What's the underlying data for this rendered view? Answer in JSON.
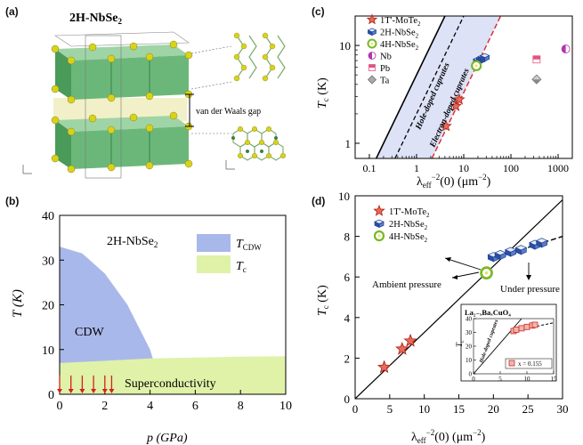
{
  "panel_a": {
    "label": "(a)",
    "title": "2H-NbSe",
    "title_sub": "2",
    "gap_label": "van der Waals gap"
  },
  "panel_b": {
    "label": "(b)",
    "title": "2H-NbSe",
    "title_sub": "2",
    "region_cdw": "CDW",
    "region_sc": "Superconductivity",
    "legend": [
      {
        "text": "T",
        "sub": "CDW",
        "color": "#a9b8ea"
      },
      {
        "text": "T",
        "sub": "c",
        "color": "#dff2a8"
      }
    ],
    "xlabel": "p (GPa)",
    "ylabel": "T (K)",
    "xticks": [
      "0",
      "2",
      "4",
      "6",
      "8",
      "10"
    ],
    "yticks": [
      "0",
      "10",
      "20",
      "30",
      "40"
    ]
  },
  "panel_c": {
    "label": "(c)",
    "xlabel_main": "λ",
    "xlabel_sub": "eff",
    "xlabel_sup": "−2",
    "xlabel_rest": "(0) (μm",
    "xlabel_unit_sup": "−2",
    "xlabel_close": ")",
    "ylabel": "T",
    "ylabel_sub": "c",
    "ylabel_rest": " (K)",
    "xticks": [
      "0.1",
      "1",
      "10",
      "100",
      "1000"
    ],
    "yticks": [
      "1",
      "10"
    ],
    "band_label_hole": "Hole-doped cuprates",
    "band_label_electron": "Electron-doped cuprates",
    "legend": [
      {
        "text": "1T'-MoTe",
        "sub": "2",
        "color": "#cc2b1d"
      },
      {
        "text": "2H-NbSe",
        "sub": "2",
        "color": "#2a4fa8"
      },
      {
        "text": "4H-NbSe",
        "sub": "2",
        "color": "#7ab828"
      },
      {
        "text": "Nb",
        "sub": "",
        "color": "#b035b0"
      },
      {
        "text": "Pb",
        "sub": "",
        "color": "#e3547f"
      },
      {
        "text": "Ta",
        "sub": "",
        "color": "#8a8a8a"
      }
    ]
  },
  "panel_d": {
    "label": "(d)",
    "xlabel_main": "λ",
    "xlabel_sub": "eff",
    "xlabel_sup": "−2",
    "xlabel_rest": "(0) (μm",
    "xlabel_unit_sup": "−2",
    "xlabel_close": ")",
    "ylabel": "T",
    "ylabel_sub": "c",
    "ylabel_rest": " (K)",
    "xticks": [
      "0",
      "5",
      "10",
      "15",
      "20",
      "25",
      "30"
    ],
    "yticks": [
      "0",
      "2",
      "4",
      "6",
      "8",
      "10"
    ],
    "ambient_label": "Ambient pressure",
    "under_label": "Under pressure",
    "legend": [
      {
        "text": "1T'-MoTe",
        "sub": "2",
        "color": "#cc2b1d"
      },
      {
        "text": "2H-NbSe",
        "sub": "2",
        "color": "#2a4fa8"
      },
      {
        "text": "4H-NbSe",
        "sub": "2",
        "color": "#7ab828"
      }
    ],
    "inset": {
      "title": "La",
      "title_full": "La₂₋ₓBaₓCuO₄",
      "rotated_label": "Hole-doped cuprates",
      "ylabel": "T",
      "ylabel_sub": "c",
      "xticks": [
        "0",
        "5",
        "10",
        "15"
      ],
      "yticks": [
        "0",
        "10",
        "20",
        "30",
        "40"
      ],
      "legend": "x = 0.155"
    }
  },
  "chart_data": [
    {
      "type": "area",
      "panel": "b",
      "title": "2H-NbSe2",
      "xlabel": "p (GPa)",
      "ylabel": "T (K)",
      "xlim": [
        0,
        10
      ],
      "ylim": [
        0,
        40
      ],
      "series": [
        {
          "name": "T_CDW",
          "x": [
            0,
            1,
            2,
            3,
            4,
            4.6
          ],
          "y": [
            33,
            31.5,
            27,
            20,
            10,
            0
          ]
        },
        {
          "name": "T_c",
          "x": [
            0,
            2,
            4,
            6,
            8,
            10
          ],
          "y": [
            7,
            7.5,
            8,
            8.2,
            8.4,
            8.5
          ]
        }
      ],
      "arrows_at_p": [
        0,
        0.5,
        1,
        1.5,
        2,
        2.3
      ]
    },
    {
      "type": "scatter",
      "panel": "c",
      "xlabel": "λeff−2(0) (μm−2)",
      "ylabel": "Tc (K)",
      "xscale": "log",
      "yscale": "log",
      "xlim": [
        0.05,
        2000
      ],
      "ylim": [
        0.7,
        20
      ],
      "series": [
        {
          "name": "1T'-MoTe2",
          "points": [
            [
              4.2,
              1.5
            ],
            [
              6.8,
              2.4
            ],
            [
              8,
              2.8
            ]
          ]
        },
        {
          "name": "2H-NbSe2",
          "points": [
            [
              20,
              7.0
            ],
            [
              23,
              7.2
            ],
            [
              25,
              7.4
            ],
            [
              28,
              7.6
            ]
          ]
        },
        {
          "name": "4H-NbSe2",
          "points": [
            [
              18.5,
              6.2
            ]
          ]
        },
        {
          "name": "Nb",
          "points": [
            [
              1450,
              9.2
            ]
          ]
        },
        {
          "name": "Pb",
          "points": [
            [
              350,
              7.2
            ]
          ]
        },
        {
          "name": "Ta",
          "points": [
            [
              350,
              4.5
            ]
          ]
        }
      ]
    },
    {
      "type": "scatter",
      "panel": "d",
      "xlabel": "λeff−2(0) (μm−2)",
      "ylabel": "Tc (K)",
      "xlim": [
        0,
        30
      ],
      "ylim": [
        0,
        10
      ],
      "series": [
        {
          "name": "1T'-MoTe2",
          "points": [
            [
              4.2,
              1.55
            ],
            [
              6.8,
              2.45
            ],
            [
              8,
              2.85
            ]
          ]
        },
        {
          "name": "2H-NbSe2",
          "points": [
            [
              20,
              7.0
            ],
            [
              21,
              7.1
            ],
            [
              22.5,
              7.25
            ],
            [
              24,
              7.35
            ],
            [
              26,
              7.6
            ],
            [
              27,
              7.7
            ]
          ]
        },
        {
          "name": "4H-NbSe2",
          "points": [
            [
              19,
              6.2
            ]
          ]
        }
      ],
      "inset": {
        "title": "La2-xBaxCuO4",
        "xlim": [
          0,
          15
        ],
        "ylim": [
          0,
          40
        ],
        "series": [
          {
            "name": "x = 0.155",
            "points": [
              [
                7.5,
                31
              ],
              [
                8,
                32
              ],
              [
                9,
                33
              ],
              [
                10,
                34
              ],
              [
                11,
                35
              ],
              [
                11.5,
                35.5
              ]
            ]
          }
        ]
      }
    }
  ]
}
